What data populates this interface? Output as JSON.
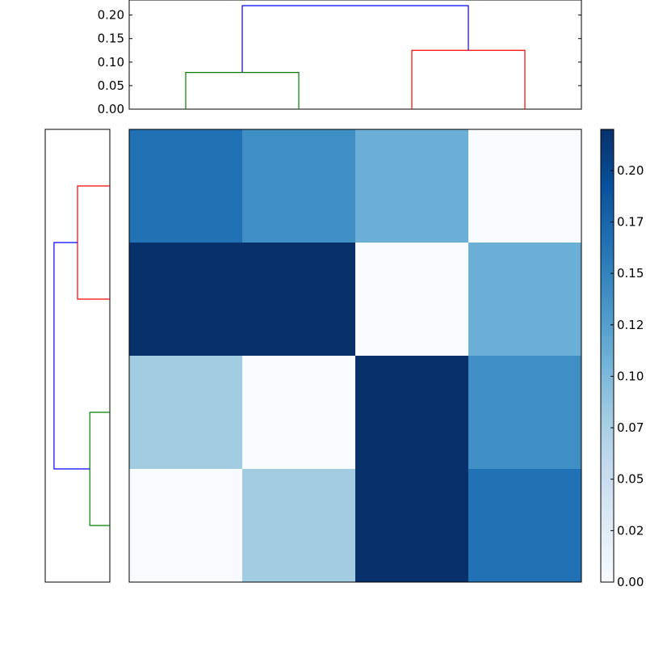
{
  "chart_data": [
    {
      "type": "dendrogram",
      "orientation": "top",
      "y_ticks": [
        "0.00",
        "0.05",
        "0.10",
        "0.15",
        "0.20"
      ],
      "ylim": [
        0,
        0.22
      ],
      "leaves": 4,
      "links": [
        {
          "left": 0,
          "right": 1,
          "height": 0.078,
          "color": "#008000"
        },
        {
          "left": 2,
          "right": 3,
          "height": 0.125,
          "color": "#ff0000"
        },
        {
          "left": 0.5,
          "right": 2.5,
          "height": 0.22,
          "color": "#0000ff"
        }
      ]
    },
    {
      "type": "dendrogram",
      "orientation": "left",
      "leaves": 4,
      "xlim": [
        0,
        0.22
      ],
      "links": [
        {
          "top": 0,
          "bottom": 1,
          "height": 0.11,
          "color": "#ff0000"
        },
        {
          "top": 2,
          "bottom": 3,
          "height": 0.068,
          "color": "#008000"
        },
        {
          "top": 0.5,
          "bottom": 2.5,
          "height": 0.19,
          "color": "#0000ff"
        }
      ]
    },
    {
      "type": "heatmap",
      "colormap": "Blues",
      "vmin": 0,
      "vmax": 0.22,
      "values": [
        [
          0.165,
          0.14,
          0.11,
          0.0
        ],
        [
          0.22,
          0.22,
          0.0,
          0.11
        ],
        [
          0.08,
          0.0,
          0.22,
          0.14
        ],
        [
          0.0,
          0.08,
          0.22,
          0.165
        ]
      ],
      "colorbar_ticks": [
        "0.00",
        "0.02",
        "0.05",
        "0.07",
        "0.10",
        "0.12",
        "0.15",
        "0.17",
        "0.20"
      ]
    }
  ]
}
